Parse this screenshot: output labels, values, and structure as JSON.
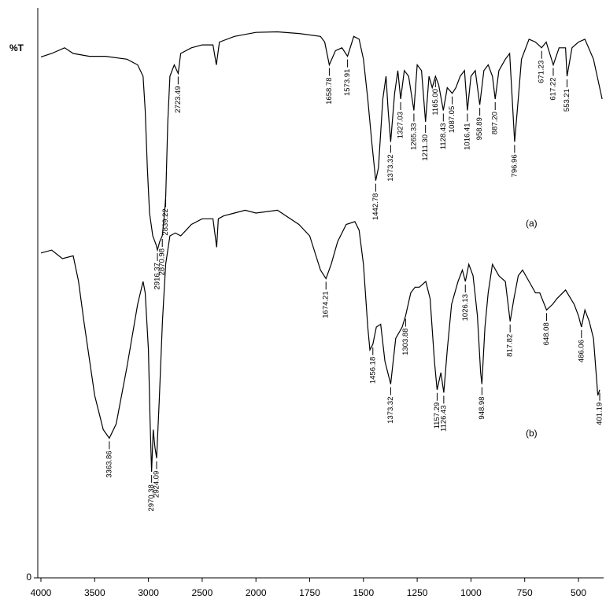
{
  "chart_data": {
    "type": "line",
    "y_label": "%T",
    "xlim": [
      4000,
      383
    ],
    "xticks": [
      4000,
      3500,
      3000,
      2500,
      2000,
      1750,
      1500,
      1250,
      1000,
      750,
      500
    ],
    "ylim": [
      0,
      100
    ],
    "yticks": [
      0
    ],
    "series": [
      {
        "name": "(a)",
        "color": "#000000",
        "label_color": "#000000",
        "x": [
          4000,
          3900,
          3780,
          3700,
          3550,
          3400,
          3200,
          3100,
          3050,
          3030,
          3010,
          2990,
          2960,
          2930,
          2916.37,
          2895,
          2870.98,
          2850,
          2839.22,
          2820,
          2800,
          2760,
          2723.49,
          2700,
          2600,
          2500,
          2400,
          2368,
          2340,
          2200,
          2000,
          1900,
          1800,
          1700,
          1680,
          1658.78,
          1630,
          1600,
          1573.91,
          1545,
          1520,
          1500,
          1480,
          1460,
          1442.78,
          1430,
          1410,
          1395,
          1385,
          1373.32,
          1355,
          1340,
          1327.03,
          1310,
          1290,
          1265.33,
          1250,
          1230,
          1211.3,
          1195,
          1180,
          1165,
          1150,
          1128.43,
          1110,
          1087.05,
          1070,
          1050,
          1030,
          1016.41,
          1000,
          980,
          958.89,
          940,
          920,
          900,
          887.2,
          870,
          840,
          820,
          796.96,
          780,
          765,
          730,
          700,
          671.23,
          650,
          617.22,
          590,
          560,
          553.21,
          530,
          500,
          470,
          430,
          390
        ],
        "values": [
          91.4,
          92,
          93,
          92,
          91.5,
          91.5,
          91,
          90,
          88,
          82,
          72,
          64,
          60,
          58.5,
          57.5,
          59,
          60,
          64,
          67,
          80,
          88,
          90,
          88.5,
          92,
          93,
          93.5,
          93.5,
          90,
          94,
          95,
          95.7,
          95.8,
          95.5,
          95,
          94,
          90,
          92.5,
          93,
          91.5,
          95,
          94.5,
          91,
          84,
          76,
          69.7,
          72,
          84,
          88,
          82,
          76.5,
          85,
          89,
          84,
          89,
          88,
          82,
          90,
          89,
          80,
          88,
          86,
          88,
          86.5,
          82,
          86,
          85,
          86,
          88,
          89,
          82,
          88,
          89,
          83,
          89,
          90,
          88,
          84,
          89,
          91,
          92,
          76.5,
          84,
          91,
          94.5,
          94,
          93,
          94,
          90,
          93,
          93,
          88,
          93,
          94,
          94.5,
          91,
          84
        ],
        "peaks": [
          2916.37,
          2870.98,
          2839.22,
          2723.49,
          1658.78,
          1573.91,
          1442.78,
          1373.32,
          1327.03,
          1265.33,
          {
            "value": 1211.3,
            "label": "1211.30"
          },
          {
            "value": 1165,
            "label": "1165.00"
          },
          1128.43,
          1087.05,
          1016.41,
          958.89,
          {
            "value": 887.2,
            "label": "887.20"
          },
          796.96,
          671.23,
          617.22,
          553.21
        ]
      },
      {
        "name": "(b)",
        "color": "#000000",
        "label_color": "#2f4a4a",
        "x": [
          4000,
          3900,
          3800,
          3700,
          3650,
          3600,
          3500,
          3420,
          3363.86,
          3300,
          3200,
          3100,
          3050,
          3030,
          3000,
          2985,
          2970.38,
          2955,
          2940,
          2924.09,
          2900,
          2870,
          2840,
          2800,
          2750,
          2700,
          2650,
          2600,
          2500,
          2400,
          2365,
          2350,
          2300,
          2200,
          2100,
          2000,
          1900,
          1800,
          1750,
          1700,
          1674.21,
          1650,
          1620,
          1580,
          1540,
          1520,
          1500,
          1480,
          1470,
          1456.18,
          1440,
          1420,
          1400,
          1373.32,
          1350,
          1320,
          1303.88,
          1280,
          1260,
          1240,
          1210,
          1190,
          1170,
          1157.29,
          1140,
          1126.43,
          1110,
          1090,
          1060,
          1040,
          1026.13,
          1010,
          990,
          970,
          955,
          948.98,
          935,
          920,
          900,
          870,
          840,
          817.82,
          800,
          780,
          760,
          730,
          700,
          680,
          648.08,
          620,
          600,
          560,
          520,
          500,
          486.06,
          470,
          450,
          430,
          410,
          401.19
        ],
        "values": [
          57,
          57.5,
          56,
          56.5,
          52,
          45,
          32,
          26,
          24.5,
          27,
          37,
          48,
          52,
          50,
          40,
          28,
          18.6,
          26,
          23,
          21,
          31,
          45,
          55,
          60,
          60.5,
          60,
          61,
          62,
          63,
          63,
          58,
          63,
          63.5,
          64,
          64.5,
          64,
          64.5,
          62,
          60,
          54,
          52.5,
          55,
          59,
          62,
          62.5,
          61,
          55,
          44,
          40,
          41,
          44,
          44.5,
          38,
          34,
          42,
          44,
          46,
          50,
          51,
          51,
          52,
          49,
          38,
          33,
          36,
          32.5,
          40,
          48,
          52,
          54,
          52,
          55,
          53,
          46,
          36,
          34,
          44,
          50,
          55,
          53,
          52,
          45,
          49,
          53,
          54,
          52,
          50,
          50,
          47,
          48,
          49,
          50.5,
          48,
          46,
          44,
          47,
          45,
          42,
          32,
          33
        ],
        "peaks": [
          3363.86,
          2970.38,
          2924.09,
          1674.21,
          1456.18,
          1373.32,
          1303.88,
          1157.29,
          1126.43,
          1026.13,
          948.98,
          817.82,
          648.08,
          486.06,
          401.19
        ]
      }
    ]
  }
}
